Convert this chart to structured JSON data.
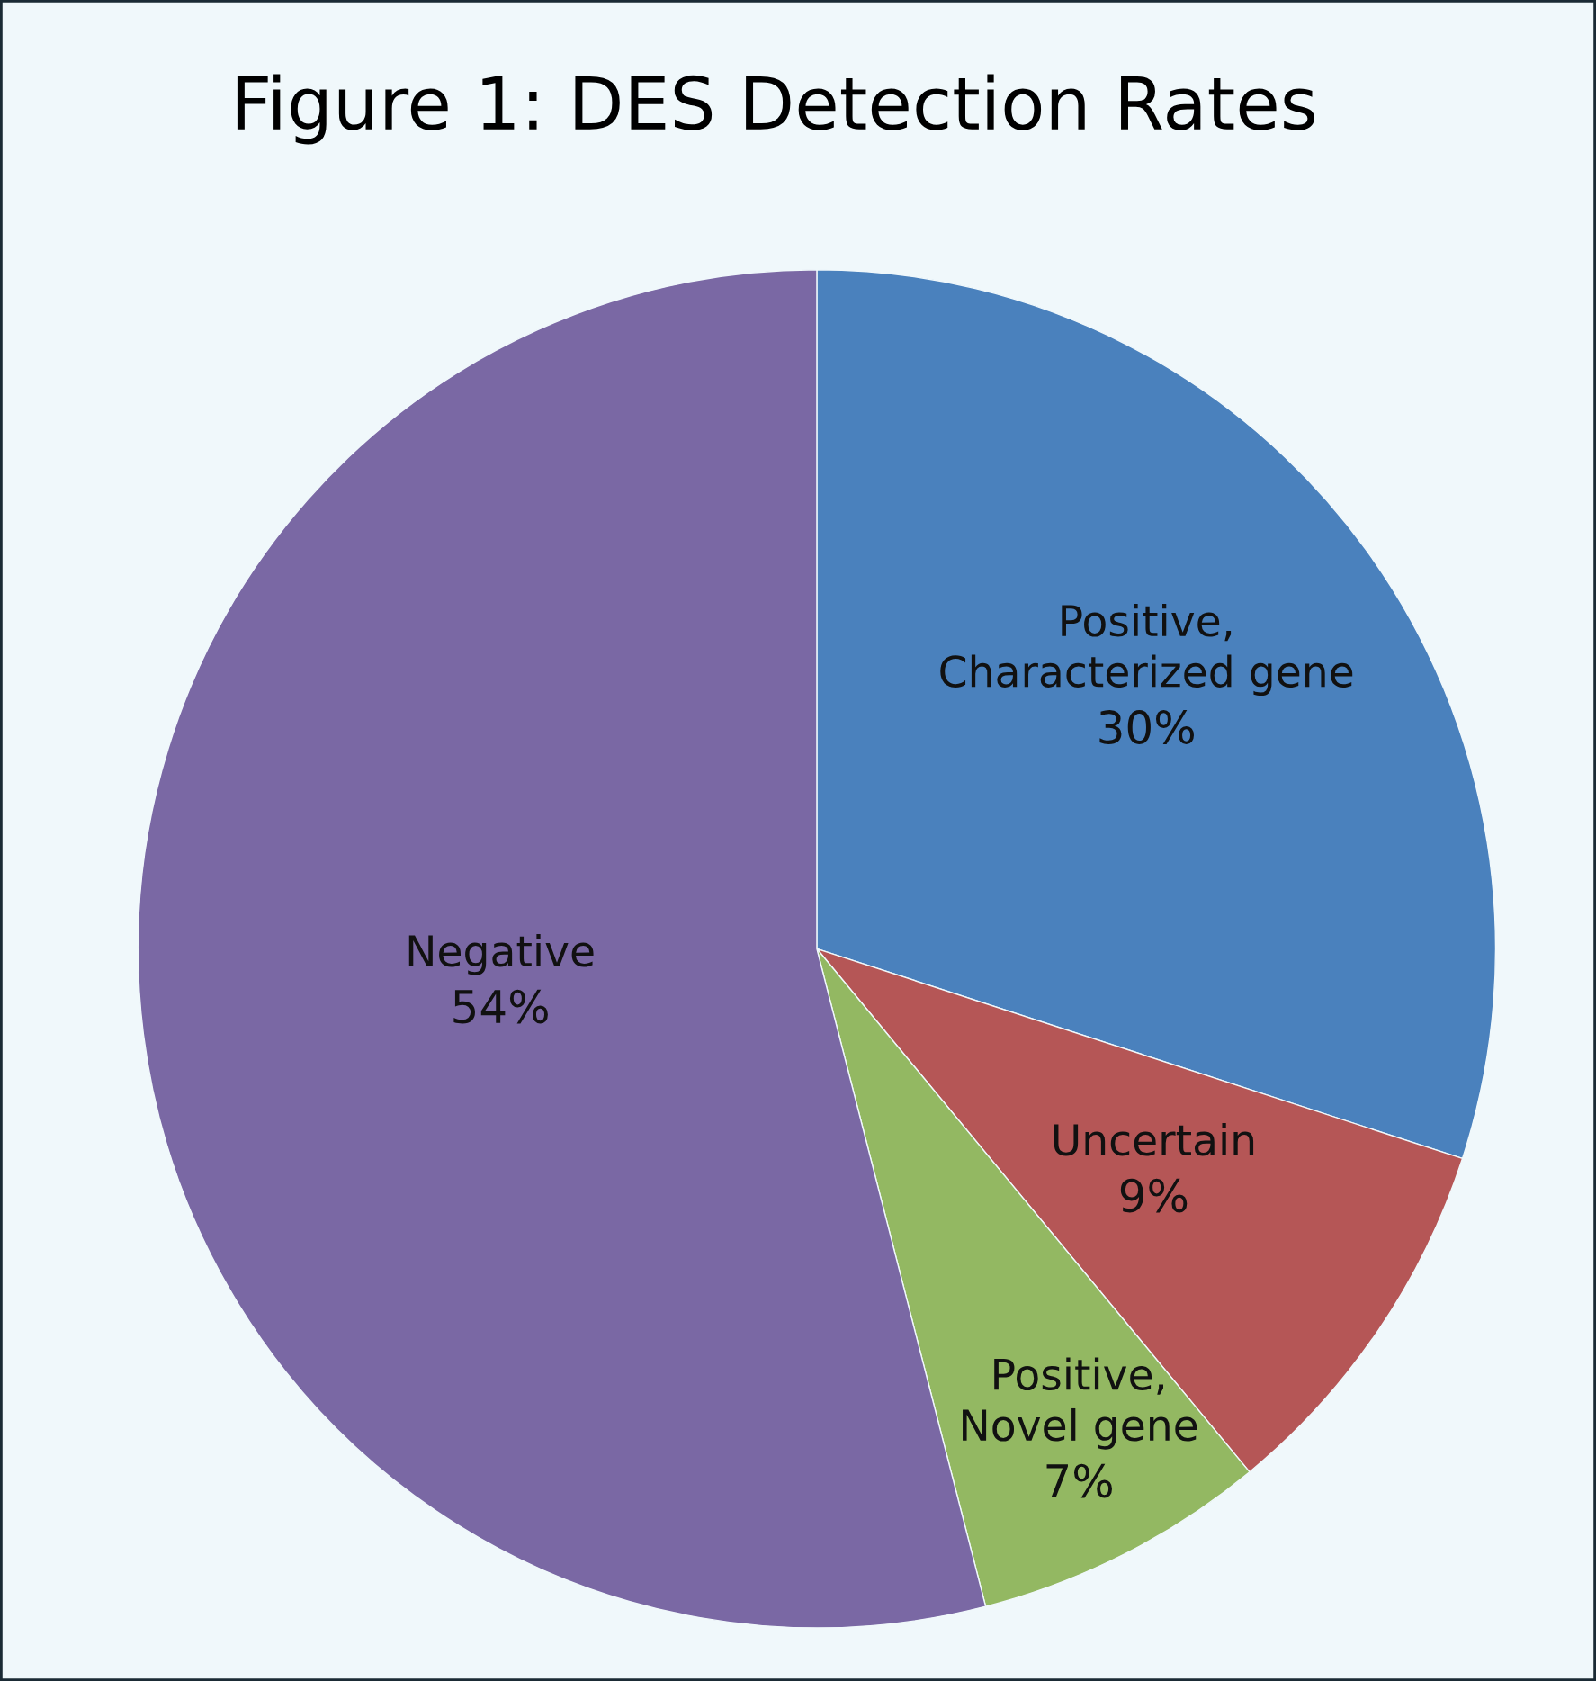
{
  "chart_data": {
    "type": "pie",
    "title": "Figure 1: DES Detection Rates",
    "categories": [
      "Positive,\nCharacterized gene",
      "Uncertain",
      "Positive,\nNovel gene",
      "Negative"
    ],
    "values": [
      30,
      9,
      7,
      54
    ],
    "colors": [
      "#4a81bd",
      "#b55656",
      "#93b862",
      "#7a68a4"
    ],
    "value_labels": [
      "30%",
      "9%",
      "7%",
      "54%"
    ]
  }
}
